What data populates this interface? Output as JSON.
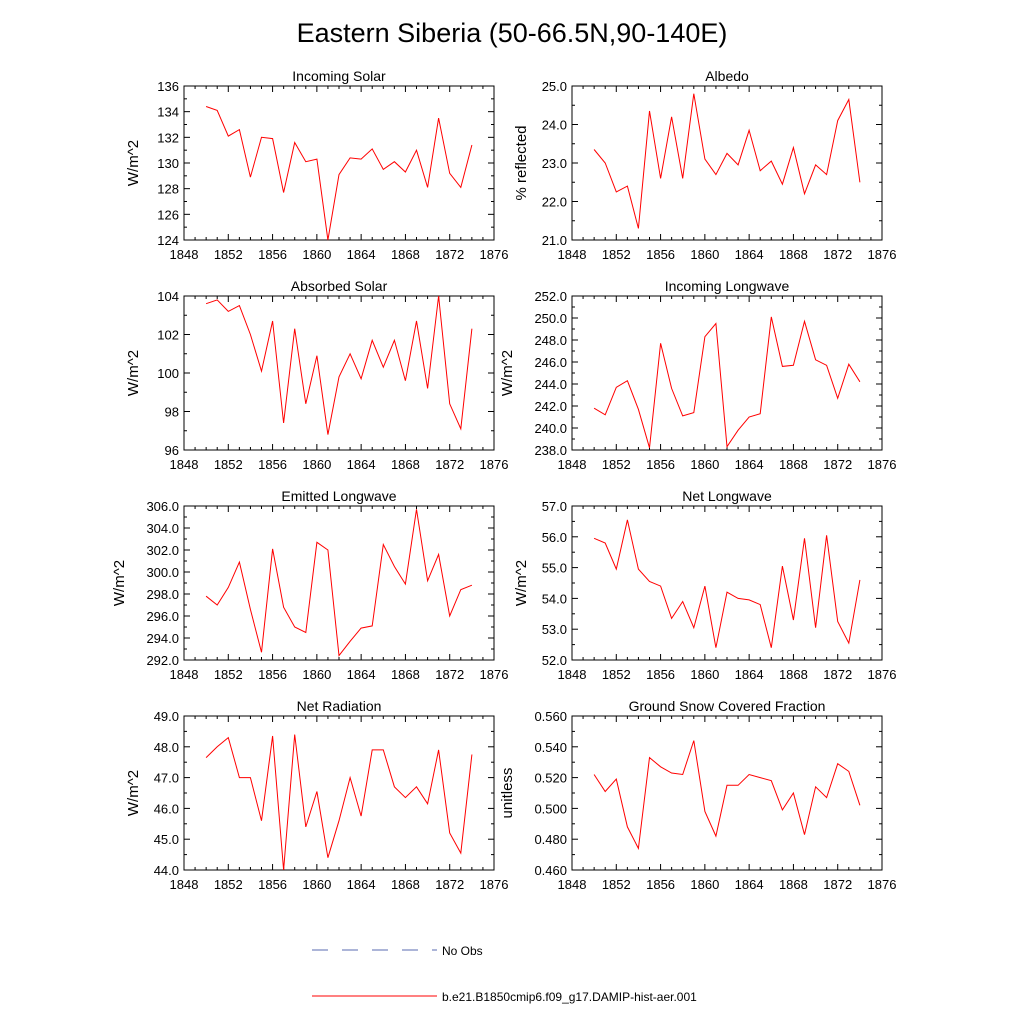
{
  "title": "Eastern Siberia (50-66.5N,90-140E)",
  "legend": {
    "placement": "bottom-center",
    "entries": [
      {
        "label": "No Obs",
        "color": "#5a6bb0",
        "style": "dashed"
      },
      {
        "label": "b.e21.B1850cmip6.f09_g17.DAMIP-hist-aer.001",
        "color": "#ff0000",
        "style": "solid"
      }
    ]
  },
  "chart_data": [
    {
      "type": "line",
      "title": "Incoming Solar",
      "ylabel": "W/m^2",
      "xlim": [
        1848,
        1876
      ],
      "ylim": [
        124,
        136
      ],
      "xticks": [
        "1848",
        "1852",
        "1856",
        "1860",
        "1864",
        "1868",
        "1872",
        "1876"
      ],
      "yticks": [
        "124",
        "126",
        "128",
        "130",
        "132",
        "134",
        "136"
      ],
      "x": [
        1850,
        1851,
        1852,
        1853,
        1854,
        1855,
        1856,
        1857,
        1858,
        1859,
        1860,
        1861,
        1862,
        1863,
        1864,
        1865,
        1866,
        1867,
        1868,
        1869,
        1870,
        1871,
        1872,
        1873,
        1874
      ],
      "values": [
        134.4,
        134.1,
        132.1,
        132.6,
        128.9,
        132.0,
        131.9,
        127.7,
        131.6,
        130.1,
        130.3,
        124.0,
        129.1,
        130.4,
        130.3,
        131.1,
        129.5,
        130.1,
        129.3,
        131.0,
        128.1,
        133.5,
        129.2,
        128.1,
        131.4
      ]
    },
    {
      "type": "line",
      "title": "Albedo",
      "ylabel": "% reflected",
      "xlim": [
        1848,
        1876
      ],
      "ylim": [
        21.0,
        25.0
      ],
      "xticks": [
        "1848",
        "1852",
        "1856",
        "1860",
        "1864",
        "1868",
        "1872",
        "1876"
      ],
      "yticks": [
        "21.0",
        "22.0",
        "23.0",
        "24.0",
        "25.0"
      ],
      "x": [
        1850,
        1851,
        1852,
        1853,
        1854,
        1855,
        1856,
        1857,
        1858,
        1859,
        1860,
        1861,
        1862,
        1863,
        1864,
        1865,
        1866,
        1867,
        1868,
        1869,
        1870,
        1871,
        1872,
        1873,
        1874
      ],
      "values": [
        23.35,
        23.0,
        22.25,
        22.4,
        21.3,
        24.35,
        22.6,
        24.2,
        22.6,
        24.8,
        23.1,
        22.7,
        23.25,
        22.95,
        23.85,
        22.8,
        23.05,
        22.45,
        23.4,
        22.2,
        22.95,
        22.7,
        24.1,
        24.65,
        22.5
      ]
    },
    {
      "type": "line",
      "title": "Absorbed Solar",
      "ylabel": "W/m^2",
      "xlim": [
        1848,
        1876
      ],
      "ylim": [
        96,
        104
      ],
      "xticks": [
        "1848",
        "1852",
        "1856",
        "1860",
        "1864",
        "1868",
        "1872",
        "1876"
      ],
      "yticks": [
        "96",
        "98",
        "100",
        "102",
        "104"
      ],
      "x": [
        1850,
        1851,
        1852,
        1853,
        1854,
        1855,
        1856,
        1857,
        1858,
        1859,
        1860,
        1861,
        1862,
        1863,
        1864,
        1865,
        1866,
        1867,
        1868,
        1869,
        1870,
        1871,
        1872,
        1873,
        1874
      ],
      "values": [
        103.6,
        103.8,
        103.2,
        103.5,
        102.0,
        100.1,
        102.7,
        97.4,
        102.3,
        98.4,
        100.9,
        96.8,
        99.8,
        101.0,
        99.7,
        101.7,
        100.3,
        101.7,
        99.6,
        102.7,
        99.2,
        104.0,
        98.4,
        97.1,
        102.3
      ]
    },
    {
      "type": "line",
      "title": "Incoming Longwave",
      "ylabel": "W/m^2",
      "xlim": [
        1848,
        1876
      ],
      "ylim": [
        238.0,
        252.0
      ],
      "xticks": [
        "1848",
        "1852",
        "1856",
        "1860",
        "1864",
        "1868",
        "1872",
        "1876"
      ],
      "yticks": [
        "238.0",
        "240.0",
        "242.0",
        "244.0",
        "246.0",
        "248.0",
        "250.0",
        "252.0"
      ],
      "x": [
        1850,
        1851,
        1852,
        1853,
        1854,
        1855,
        1856,
        1857,
        1858,
        1859,
        1860,
        1861,
        1862,
        1863,
        1864,
        1865,
        1866,
        1867,
        1868,
        1869,
        1870,
        1871,
        1872,
        1873,
        1874
      ],
      "values": [
        241.8,
        241.2,
        243.7,
        244.3,
        241.7,
        238.2,
        247.7,
        243.6,
        241.1,
        241.4,
        248.3,
        249.5,
        238.3,
        239.8,
        241.0,
        241.3,
        250.1,
        245.6,
        245.7,
        249.7,
        246.2,
        245.7,
        242.7,
        245.8,
        244.2
      ]
    },
    {
      "type": "line",
      "title": "Emitted Longwave",
      "ylabel": "W/m^2",
      "xlim": [
        1848,
        1876
      ],
      "ylim": [
        292.0,
        306.0
      ],
      "xticks": [
        "1848",
        "1852",
        "1856",
        "1860",
        "1864",
        "1868",
        "1872",
        "1876"
      ],
      "yticks": [
        "292.0",
        "294.0",
        "296.0",
        "298.0",
        "300.0",
        "302.0",
        "304.0",
        "306.0"
      ],
      "x": [
        1850,
        1851,
        1852,
        1853,
        1854,
        1855,
        1856,
        1857,
        1858,
        1859,
        1860,
        1861,
        1862,
        1863,
        1864,
        1865,
        1866,
        1867,
        1868,
        1869,
        1870,
        1871,
        1872,
        1873,
        1874
      ],
      "values": [
        297.8,
        297.0,
        298.6,
        300.9,
        296.6,
        292.7,
        302.1,
        296.8,
        295.0,
        294.5,
        302.7,
        302.0,
        292.4,
        293.7,
        294.9,
        295.1,
        302.5,
        300.5,
        298.9,
        305.7,
        299.2,
        301.6,
        296.0,
        298.4,
        298.8
      ]
    },
    {
      "type": "line",
      "title": "Net Longwave",
      "ylabel": "W/m^2",
      "xlim": [
        1848,
        1876
      ],
      "ylim": [
        52.0,
        57.0
      ],
      "xticks": [
        "1848",
        "1852",
        "1856",
        "1860",
        "1864",
        "1868",
        "1872",
        "1876"
      ],
      "yticks": [
        "52.0",
        "53.0",
        "54.0",
        "55.0",
        "56.0",
        "57.0"
      ],
      "x": [
        1850,
        1851,
        1852,
        1853,
        1854,
        1855,
        1856,
        1857,
        1858,
        1859,
        1860,
        1861,
        1862,
        1863,
        1864,
        1865,
        1866,
        1867,
        1868,
        1869,
        1870,
        1871,
        1872,
        1873,
        1874
      ],
      "values": [
        55.95,
        55.8,
        54.95,
        56.55,
        54.95,
        54.55,
        54.4,
        53.35,
        53.9,
        53.05,
        54.4,
        52.4,
        54.2,
        54.0,
        53.95,
        53.8,
        52.4,
        55.05,
        53.3,
        55.95,
        53.05,
        56.05,
        53.25,
        52.55,
        54.6
      ]
    },
    {
      "type": "line",
      "title": "Net Radiation",
      "ylabel": "W/m^2",
      "xlim": [
        1848,
        1876
      ],
      "ylim": [
        44.0,
        49.0
      ],
      "xticks": [
        "1848",
        "1852",
        "1856",
        "1860",
        "1864",
        "1868",
        "1872",
        "1876"
      ],
      "yticks": [
        "44.0",
        "45.0",
        "46.0",
        "47.0",
        "48.0",
        "49.0"
      ],
      "x": [
        1850,
        1851,
        1852,
        1853,
        1854,
        1855,
        1856,
        1857,
        1858,
        1859,
        1860,
        1861,
        1862,
        1863,
        1864,
        1865,
        1866,
        1867,
        1868,
        1869,
        1870,
        1871,
        1872,
        1873,
        1874
      ],
      "values": [
        47.65,
        48.0,
        48.3,
        47.0,
        47.0,
        45.6,
        48.35,
        44.0,
        48.4,
        45.4,
        46.55,
        44.4,
        45.6,
        47.0,
        45.75,
        47.9,
        47.9,
        46.7,
        46.35,
        46.7,
        46.15,
        47.9,
        45.2,
        44.55,
        47.75
      ]
    },
    {
      "type": "line",
      "title": "Ground Snow Covered Fraction",
      "ylabel": "unitless",
      "xlim": [
        1848,
        1876
      ],
      "ylim": [
        0.46,
        0.56
      ],
      "xticks": [
        "1848",
        "1852",
        "1856",
        "1860",
        "1864",
        "1868",
        "1872",
        "1876"
      ],
      "yticks": [
        "0.460",
        "0.480",
        "0.500",
        "0.520",
        "0.540",
        "0.560"
      ],
      "x": [
        1850,
        1851,
        1852,
        1853,
        1854,
        1855,
        1856,
        1857,
        1858,
        1859,
        1860,
        1861,
        1862,
        1863,
        1864,
        1865,
        1866,
        1867,
        1868,
        1869,
        1870,
        1871,
        1872,
        1873,
        1874
      ],
      "values": [
        0.522,
        0.511,
        0.519,
        0.488,
        0.474,
        0.533,
        0.527,
        0.523,
        0.522,
        0.544,
        0.498,
        0.482,
        0.515,
        0.515,
        0.522,
        0.52,
        0.518,
        0.499,
        0.51,
        0.483,
        0.514,
        0.507,
        0.529,
        0.524,
        0.502
      ]
    }
  ]
}
